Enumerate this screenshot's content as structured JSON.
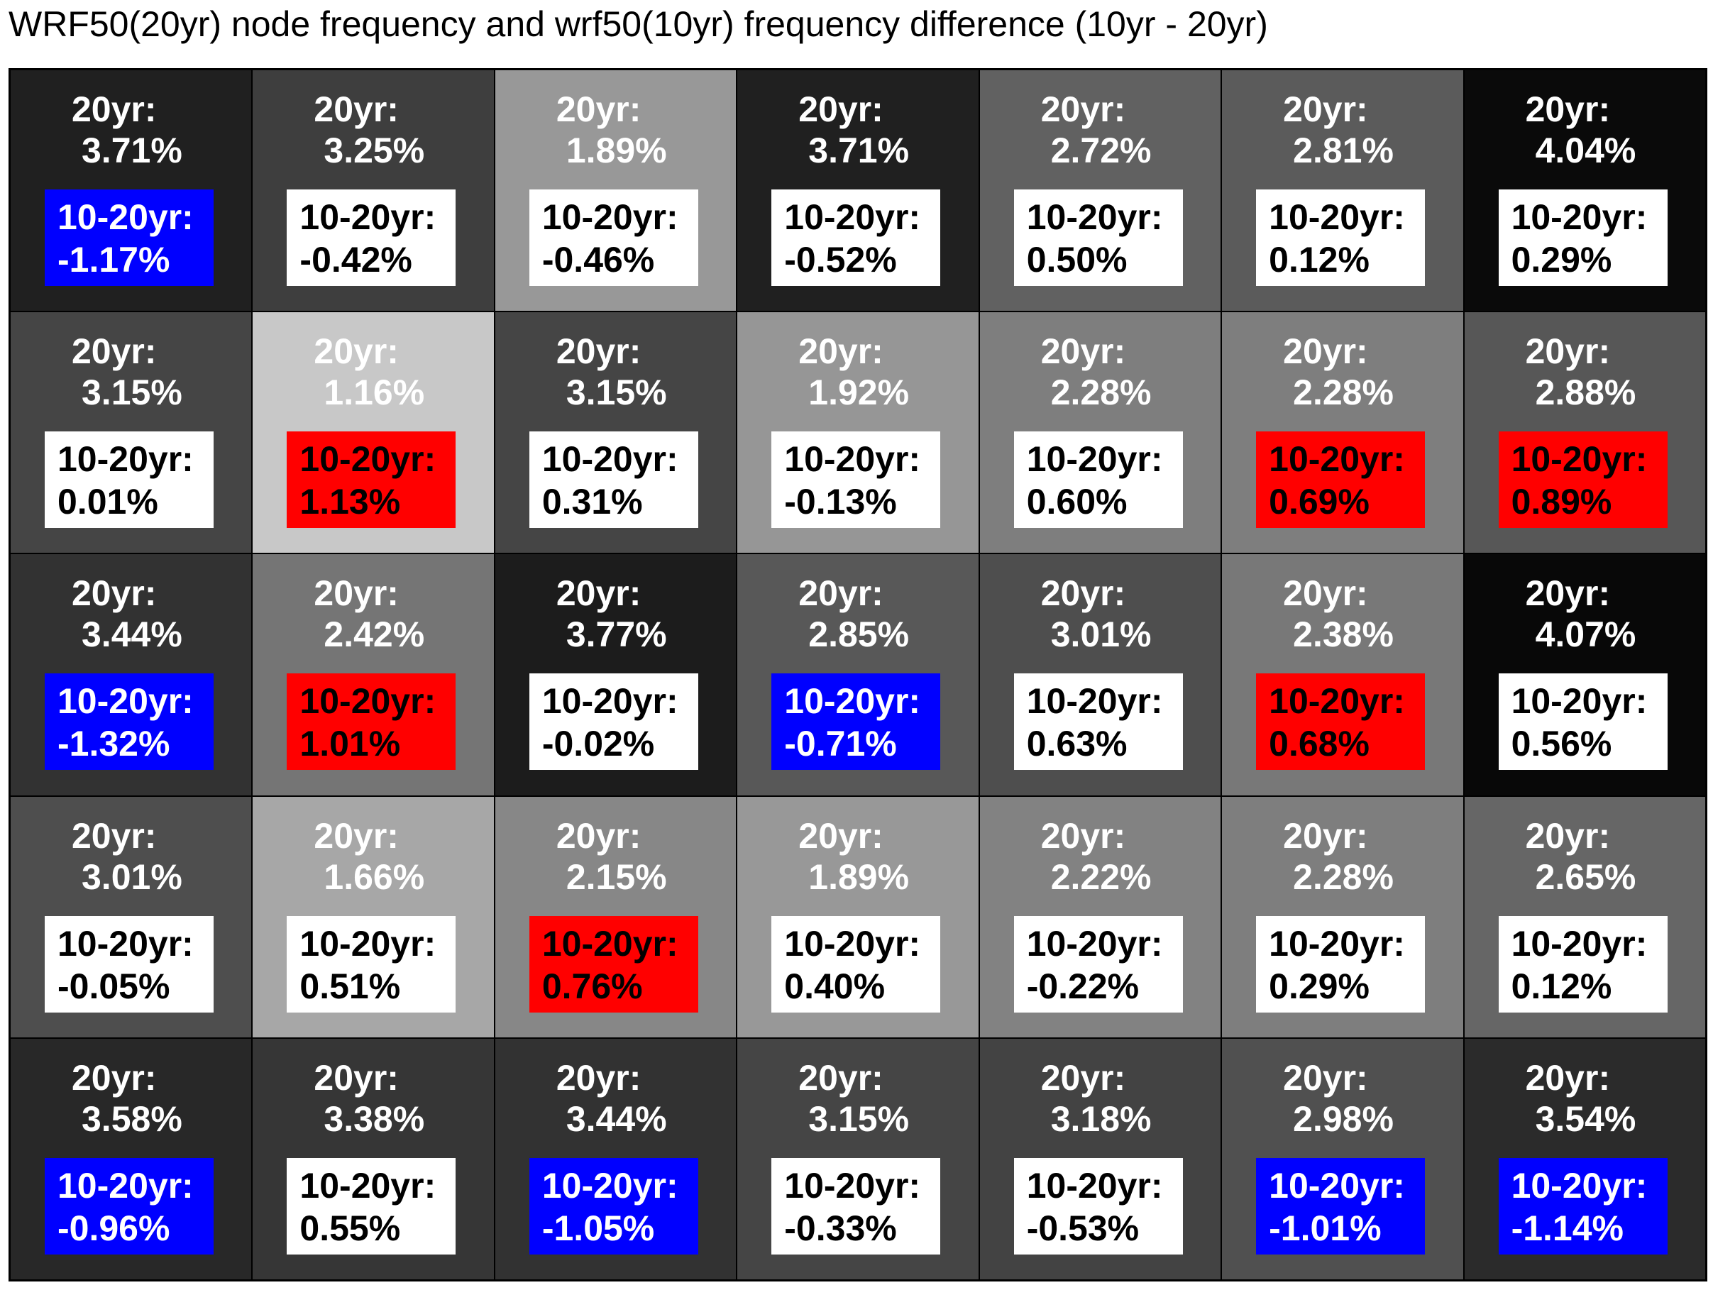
{
  "chart_data": {
    "type": "heatmap",
    "title": "WRF50(20yr) node frequency and wrf50(10yr) frequency difference (10yr - 20yr)",
    "rows": 5,
    "cols": 7,
    "label_20yr": "20yr:",
    "label_diff": "10-20yr:",
    "freq_20yr": [
      [
        "3.71%",
        "3.25%",
        "1.89%",
        "3.71%",
        "2.72%",
        "2.81%",
        "4.04%"
      ],
      [
        "3.15%",
        "1.16%",
        "3.15%",
        "1.92%",
        "2.28%",
        "2.28%",
        "2.88%"
      ],
      [
        "3.44%",
        "2.42%",
        "3.77%",
        "2.85%",
        "3.01%",
        "2.38%",
        "4.07%"
      ],
      [
        "3.01%",
        "1.66%",
        "2.15%",
        "1.89%",
        "2.22%",
        "2.28%",
        "2.65%"
      ],
      [
        "3.58%",
        "3.38%",
        "3.44%",
        "3.15%",
        "3.18%",
        "2.98%",
        "3.54%"
      ]
    ],
    "diff_10_20yr": [
      [
        "-1.17%",
        "-0.42%",
        "-0.46%",
        "-0.52%",
        "0.50%",
        "0.12%",
        "0.29%"
      ],
      [
        "0.01%",
        "1.13%",
        "0.31%",
        "-0.13%",
        "0.60%",
        "0.69%",
        "0.89%"
      ],
      [
        "-1.32%",
        "1.01%",
        "-0.02%",
        "-0.71%",
        "0.63%",
        "0.68%",
        "0.56%"
      ],
      [
        "-0.05%",
        "0.51%",
        "0.76%",
        "0.40%",
        "-0.22%",
        "0.29%",
        "0.12%"
      ],
      [
        "-0.96%",
        "0.55%",
        "-1.05%",
        "-0.33%",
        "-0.53%",
        "-1.01%",
        "-1.14%"
      ]
    ],
    "colors": {
      "positive_highlight": "#ff0000",
      "negative_highlight": "#0000ff",
      "neutral_box": "#ffffff",
      "frequency_scale": "grayscale (darker = higher frequency)"
    },
    "highlight_threshold": 0.65
  }
}
